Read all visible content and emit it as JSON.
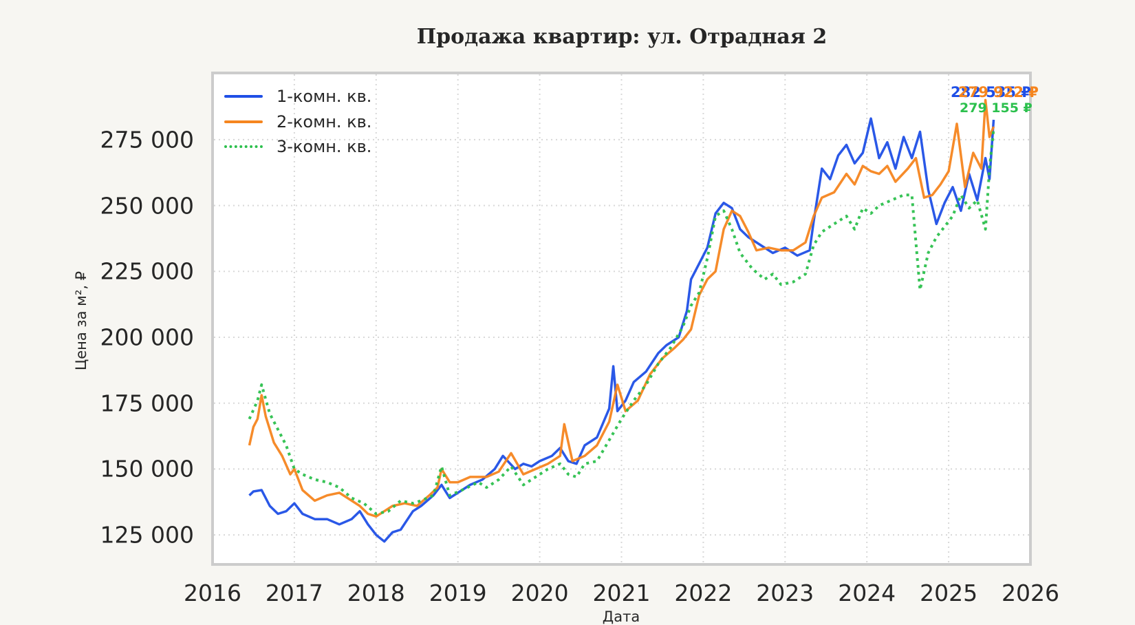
{
  "chart_data": {
    "type": "line",
    "title": "Продажа квартир: ул. Отрадная 2",
    "xlabel": "Дата",
    "ylabel": "Цена за м², ₽",
    "xlim": [
      2016,
      2026
    ],
    "ylim": [
      113800,
      300300
    ],
    "grid": true,
    "legend_position": "upper left",
    "x_ticks": [
      "2016",
      "2017",
      "2018",
      "2019",
      "2020",
      "2021",
      "2022",
      "2023",
      "2024",
      "2025",
      "2026"
    ],
    "y_ticks": [
      "125 000",
      "150 000",
      "175 000",
      "200 000",
      "225 000",
      "250 000",
      "275 000"
    ],
    "y_tick_values": [
      125000,
      150000,
      175000,
      200000,
      225000,
      250000,
      275000
    ],
    "series": [
      {
        "name": "1-комн. кв.",
        "color": "#1f4fe6",
        "style": "solid",
        "end_label": "282 535 ₽",
        "x": [
          2016.45,
          2016.5,
          2016.6,
          2016.7,
          2016.8,
          2016.9,
          2017.0,
          2017.1,
          2017.25,
          2017.4,
          2017.55,
          2017.7,
          2017.8,
          2017.9,
          2018.0,
          2018.1,
          2018.2,
          2018.3,
          2018.45,
          2018.55,
          2018.7,
          2018.8,
          2018.9,
          2019.0,
          2019.15,
          2019.3,
          2019.45,
          2019.55,
          2019.7,
          2019.8,
          2019.9,
          2020.0,
          2020.15,
          2020.25,
          2020.35,
          2020.45,
          2020.55,
          2020.7,
          2020.85,
          2020.9,
          2020.95,
          2021.05,
          2021.15,
          2021.3,
          2021.45,
          2021.55,
          2021.7,
          2021.8,
          2021.85,
          2021.95,
          2022.05,
          2022.15,
          2022.25,
          2022.35,
          2022.45,
          2022.55,
          2022.7,
          2022.85,
          2023.0,
          2023.15,
          2023.3,
          2023.35,
          2023.45,
          2023.55,
          2023.65,
          2023.75,
          2023.85,
          2023.95,
          2024.05,
          2024.15,
          2024.25,
          2024.35,
          2024.45,
          2024.55,
          2024.65,
          2024.75,
          2024.85,
          2024.95,
          2025.05,
          2025.15,
          2025.25,
          2025.35,
          2025.45,
          2025.5,
          2025.55
        ],
        "y": [
          140000,
          141500,
          142000,
          136000,
          133000,
          134000,
          137000,
          133000,
          131000,
          131000,
          129000,
          131000,
          134000,
          129000,
          125000,
          122500,
          126000,
          127000,
          134000,
          136000,
          140000,
          144000,
          139000,
          141000,
          144000,
          146000,
          150000,
          155000,
          150000,
          152000,
          151000,
          153000,
          155000,
          158000,
          153000,
          152000,
          159000,
          162000,
          173000,
          189000,
          172000,
          176000,
          183000,
          187000,
          194000,
          197000,
          200000,
          210000,
          222000,
          228000,
          234000,
          247000,
          251000,
          249000,
          241000,
          238000,
          235000,
          232000,
          234000,
          231000,
          233000,
          244000,
          264000,
          260000,
          269000,
          273000,
          266000,
          270000,
          283000,
          268000,
          274000,
          264000,
          276000,
          268000,
          278000,
          256000,
          243000,
          251000,
          257000,
          248000,
          262000,
          252000,
          268000,
          260000,
          282535
        ]
      },
      {
        "name": "2-комн. кв.",
        "color": "#f5851f",
        "style": "solid",
        "end_label": "279 922 ₽",
        "x": [
          2016.45,
          2016.5,
          2016.55,
          2016.6,
          2016.65,
          2016.75,
          2016.85,
          2016.95,
          2017.0,
          2017.1,
          2017.25,
          2017.4,
          2017.55,
          2017.65,
          2017.8,
          2017.9,
          2018.0,
          2018.1,
          2018.2,
          2018.35,
          2018.5,
          2018.65,
          2018.75,
          2018.8,
          2018.9,
          2019.0,
          2019.15,
          2019.35,
          2019.5,
          2019.65,
          2019.8,
          2019.95,
          2020.1,
          2020.25,
          2020.3,
          2020.4,
          2020.55,
          2020.7,
          2020.85,
          2020.95,
          2021.05,
          2021.2,
          2021.35,
          2021.5,
          2021.65,
          2021.75,
          2021.85,
          2021.95,
          2022.05,
          2022.15,
          2022.25,
          2022.35,
          2022.45,
          2022.55,
          2022.65,
          2022.8,
          2022.95,
          2023.1,
          2023.25,
          2023.35,
          2023.45,
          2023.6,
          2023.75,
          2023.85,
          2023.95,
          2024.05,
          2024.15,
          2024.25,
          2024.35,
          2024.5,
          2024.6,
          2024.7,
          2024.8,
          2024.9,
          2025.0,
          2025.1,
          2025.2,
          2025.3,
          2025.4,
          2025.45,
          2025.5,
          2025.55
        ],
        "y": [
          159000,
          166000,
          169000,
          178000,
          170000,
          160000,
          155000,
          148000,
          150000,
          142000,
          138000,
          140000,
          141000,
          139000,
          136000,
          133000,
          132000,
          134000,
          136000,
          137000,
          136000,
          140000,
          143000,
          150000,
          145000,
          145000,
          147000,
          147000,
          149000,
          156000,
          148000,
          150000,
          152000,
          155000,
          167000,
          153000,
          155000,
          159000,
          168000,
          182000,
          172000,
          176000,
          186000,
          192000,
          196000,
          199000,
          203000,
          216000,
          222000,
          225000,
          241000,
          248000,
          246000,
          240000,
          233000,
          234000,
          233000,
          233000,
          236000,
          246000,
          253000,
          255000,
          262000,
          258000,
          265000,
          263000,
          262000,
          265000,
          259000,
          264000,
          268000,
          253000,
          254000,
          258000,
          263000,
          281000,
          257000,
          270000,
          264000,
          290000,
          276000,
          279922
        ]
      },
      {
        "name": "3-комн. кв.",
        "color": "#2cc04d",
        "style": "dotted",
        "end_label": "279 155 ₽",
        "x": [
          2016.45,
          2016.55,
          2016.6,
          2016.7,
          2016.8,
          2016.9,
          2017.0,
          2017.1,
          2017.25,
          2017.4,
          2017.55,
          2017.7,
          2017.85,
          2018.0,
          2018.15,
          2018.3,
          2018.45,
          2018.55,
          2018.7,
          2018.8,
          2018.9,
          2019.05,
          2019.25,
          2019.35,
          2019.5,
          2019.65,
          2019.8,
          2019.95,
          2020.1,
          2020.25,
          2020.35,
          2020.45,
          2020.55,
          2020.7,
          2020.85,
          2021.0,
          2021.15,
          2021.3,
          2021.45,
          2021.6,
          2021.75,
          2021.85,
          2021.95,
          2022.05,
          2022.15,
          2022.25,
          2022.35,
          2022.45,
          2022.6,
          2022.75,
          2022.85,
          2022.95,
          2023.1,
          2023.25,
          2023.35,
          2023.45,
          2023.6,
          2023.75,
          2023.85,
          2023.95,
          2024.05,
          2024.15,
          2024.3,
          2024.45,
          2024.55,
          2024.6,
          2024.65,
          2024.75,
          2024.85,
          2024.95,
          2025.05,
          2025.15,
          2025.25,
          2025.35,
          2025.45,
          2025.5,
          2025.55
        ],
        "y": [
          169000,
          176000,
          182000,
          171000,
          165000,
          159000,
          150000,
          148000,
          146000,
          145000,
          143000,
          139000,
          137000,
          133000,
          134000,
          138000,
          137000,
          138000,
          140000,
          151000,
          140000,
          142000,
          145000,
          143000,
          146000,
          151000,
          144000,
          147000,
          150000,
          152000,
          148000,
          147000,
          152000,
          153000,
          161000,
          169000,
          176000,
          182000,
          190000,
          196000,
          204000,
          212000,
          217000,
          230000,
          246000,
          248000,
          241000,
          232000,
          226000,
          222000,
          224000,
          220000,
          221000,
          224000,
          235000,
          240000,
          243000,
          246000,
          241000,
          249000,
          247000,
          250000,
          252000,
          254000,
          254000,
          236000,
          218000,
          232000,
          238000,
          242000,
          246000,
          254000,
          249000,
          252000,
          241000,
          264000,
          279155
        ]
      }
    ]
  }
}
